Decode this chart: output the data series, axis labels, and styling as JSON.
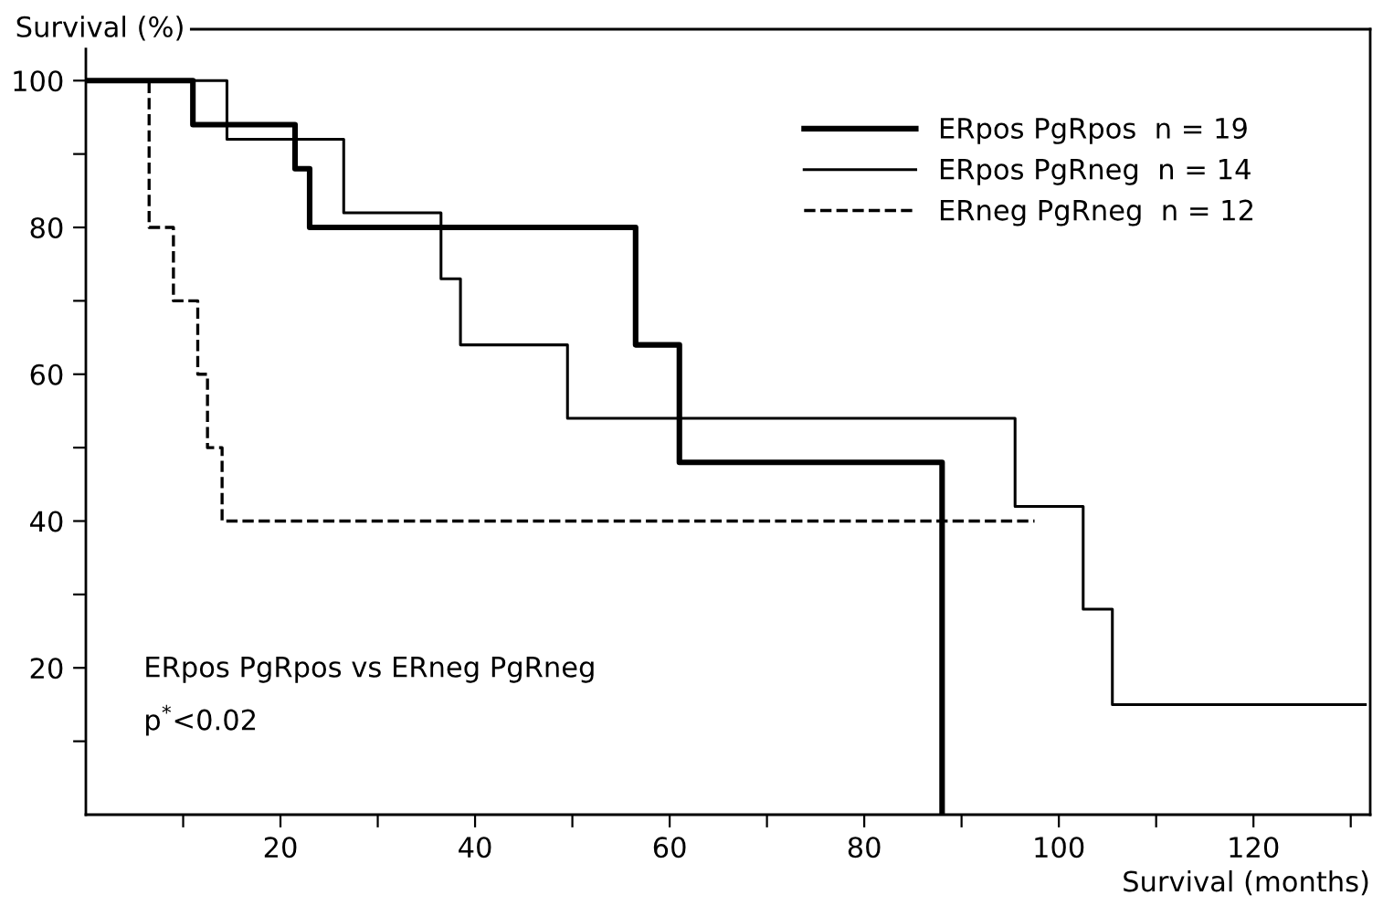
{
  "chart_data": {
    "type": "step",
    "ylabel": "Survival (%)",
    "xlabel": "Survival (months)",
    "series": [
      {
        "name": "ERpos PgRpos  n = 19",
        "color": "#000000",
        "line_style": "solid",
        "x": [
          0,
          11,
          21.5,
          23,
          56.5,
          61,
          88
        ],
        "values": [
          100,
          94,
          88,
          80,
          64,
          48,
          0
        ]
      },
      {
        "name": "ERpos PgRneg  n = 14",
        "color": "#000000",
        "line_style": "solid",
        "x": [
          0,
          14.5,
          26.5,
          36.5,
          38.5,
          49.5,
          95.5,
          102.5,
          105.5,
          131.5
        ],
        "values": [
          100,
          92,
          82,
          73,
          64,
          54,
          42,
          28,
          15,
          15
        ]
      },
      {
        "name": "ERneg PgRneg  n = 12",
        "color": "#000000",
        "line_style": "dashed",
        "x": [
          0,
          6.5,
          9,
          11.5,
          12.5,
          14,
          97.5
        ],
        "values": [
          100,
          80,
          70,
          60,
          50,
          40,
          40
        ]
      }
    ],
    "xlim": [
      0,
      132
    ],
    "ylim": [
      0,
      107
    ],
    "xticks": [
      {
        "value": 10,
        "label": null
      },
      20,
      {
        "value": 30,
        "label": null
      },
      40,
      {
        "value": 50,
        "label": null
      },
      60,
      {
        "value": 70,
        "label": null
      },
      80,
      {
        "value": 90,
        "label": null
      },
      100,
      {
        "value": 110,
        "label": null
      },
      120,
      {
        "value": 130,
        "label": null
      }
    ],
    "yticks": [
      {
        "value": 10,
        "label": null
      },
      20,
      {
        "value": 30,
        "label": null
      },
      40,
      {
        "value": 50,
        "label": null
      },
      60,
      {
        "value": 70,
        "label": null
      },
      80,
      {
        "value": 90,
        "label": null
      },
      100
    ],
    "annotations": [
      "ERpos PgRpos vs ERneg PgRneg",
      "p$^{*}$<0.02"
    ],
    "legend": "top right",
    "grid": false,
    "marker": "none"
  }
}
